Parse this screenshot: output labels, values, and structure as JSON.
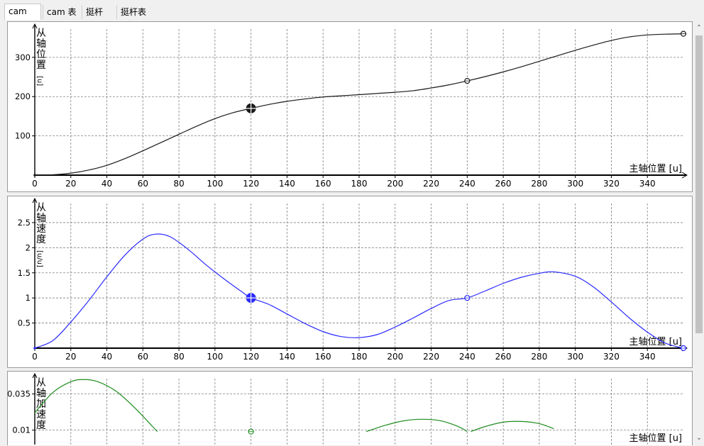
{
  "tabs": [
    {
      "label": "cam",
      "active": true
    },
    {
      "label": "cam 表",
      "active": false
    },
    {
      "label": "挺杆",
      "active": false
    },
    {
      "label": "挺杆表",
      "active": false
    }
  ],
  "colors": {
    "position": "#1a1a1a",
    "velocity": "#2b2bff",
    "acceleration": "#1e8c1e",
    "grid": "#808080"
  },
  "chart_data": [
    {
      "type": "line",
      "name": "position",
      "xlabel": "主轴位置 [u]",
      "ylabel_chars": [
        "从",
        "轴",
        "位",
        "置"
      ],
      "yunit": "[u]",
      "xlim": [
        0,
        360
      ],
      "ylim": [
        0,
        372
      ],
      "xticks": [
        0,
        20,
        40,
        60,
        80,
        100,
        120,
        140,
        160,
        180,
        200,
        220,
        240,
        260,
        280,
        300,
        320,
        340
      ],
      "yticks": [
        100,
        200,
        300
      ],
      "ytick_labels": [
        "100",
        "200",
        "300"
      ],
      "series": [
        {
          "x": [
            0,
            10,
            20,
            30,
            40,
            50,
            60,
            70,
            80,
            90,
            100,
            110,
            120,
            130,
            140,
            150,
            160,
            170,
            180,
            190,
            200,
            210,
            220,
            230,
            240,
            250,
            260,
            270,
            280,
            290,
            300,
            310,
            320,
            330,
            340,
            350,
            360
          ],
          "values": [
            0,
            1,
            5,
            13,
            25,
            42,
            62,
            83,
            104,
            125,
            144,
            159,
            170,
            180,
            188,
            194,
            199,
            202,
            205,
            208,
            211,
            215,
            222,
            230,
            240,
            251,
            263,
            276,
            290,
            304,
            318,
            331,
            343,
            352,
            357,
            359,
            360
          ]
        }
      ],
      "markers": [
        {
          "x": 0,
          "y": 0,
          "style": "small"
        },
        {
          "x": 120,
          "y": 170,
          "style": "big"
        },
        {
          "x": 240,
          "y": 240,
          "style": "circle"
        },
        {
          "x": 360,
          "y": 360,
          "style": "circle"
        }
      ]
    },
    {
      "type": "line",
      "name": "velocity",
      "xlabel": "主轴位置 [u]",
      "ylabel_chars": [
        "从",
        "轴",
        "速",
        "度"
      ],
      "yunit": "[u/u]",
      "xlim": [
        0,
        360
      ],
      "ylim": [
        0,
        2.88
      ],
      "xticks": [
        0,
        20,
        40,
        60,
        80,
        100,
        120,
        140,
        160,
        180,
        200,
        220,
        240,
        260,
        280,
        300,
        320,
        340
      ],
      "yticks": [
        0.5,
        1,
        1.5,
        2,
        2.5
      ],
      "ytick_labels": [
        "0.5",
        "1",
        "1.5",
        "2",
        "2.5"
      ],
      "series": [
        {
          "x": [
            0,
            10,
            20,
            30,
            40,
            50,
            60,
            67,
            75,
            85,
            95,
            105,
            115,
            120,
            130,
            140,
            150,
            160,
            170,
            180,
            190,
            200,
            210,
            220,
            230,
            240,
            250,
            260,
            270,
            280,
            288,
            300,
            310,
            320,
            330,
            340,
            350,
            360
          ],
          "values": [
            0,
            0.15,
            0.52,
            0.95,
            1.42,
            1.85,
            2.17,
            2.27,
            2.22,
            1.97,
            1.66,
            1.38,
            1.12,
            1.0,
            0.87,
            0.68,
            0.49,
            0.33,
            0.23,
            0.21,
            0.27,
            0.42,
            0.6,
            0.79,
            0.95,
            1.0,
            1.14,
            1.29,
            1.41,
            1.49,
            1.52,
            1.43,
            1.22,
            0.92,
            0.6,
            0.32,
            0.1,
            0
          ]
        }
      ],
      "markers": [
        {
          "x": 0,
          "y": 0,
          "style": "small"
        },
        {
          "x": 120,
          "y": 1,
          "style": "big"
        },
        {
          "x": 240,
          "y": 1,
          "style": "circle"
        },
        {
          "x": 360,
          "y": 0,
          "style": "circle"
        }
      ]
    },
    {
      "type": "line",
      "name": "acceleration",
      "xlabel": "主轴位置 [u]",
      "ylabel_chars": [
        "从",
        "轴",
        "加",
        "速",
        "度"
      ],
      "yunit": "",
      "xlim": [
        0,
        360
      ],
      "ylim": [
        0.0,
        0.0456
      ],
      "xticks": [
        0,
        20,
        40,
        60,
        80,
        100,
        120,
        140,
        160,
        180,
        200,
        220,
        240,
        260,
        280,
        300,
        320,
        340
      ],
      "yticks": [
        0.01,
        0.035
      ],
      "ytick_labels": [
        "0.01",
        "0.035"
      ],
      "series": [
        {
          "x": [
            0,
            10,
            20,
            27,
            35,
            45,
            55,
            65,
            68
          ],
          "values": [
            0.022,
            0.036,
            0.0435,
            0.045,
            0.0435,
            0.037,
            0.026,
            0.013,
            0.009
          ]
        },
        {
          "x": [
            184,
            195,
            205,
            215,
            225,
            235,
            240
          ],
          "values": [
            0.009,
            0.0135,
            0.0165,
            0.0175,
            0.0165,
            0.0125,
            0.009
          ]
        },
        {
          "x": [
            242,
            250,
            260,
            270,
            280,
            288
          ],
          "values": [
            0.009,
            0.0125,
            0.0155,
            0.016,
            0.0145,
            0.011
          ]
        }
      ],
      "markers": [
        {
          "x": 120,
          "y": 0.009,
          "style": "circle"
        }
      ]
    }
  ]
}
